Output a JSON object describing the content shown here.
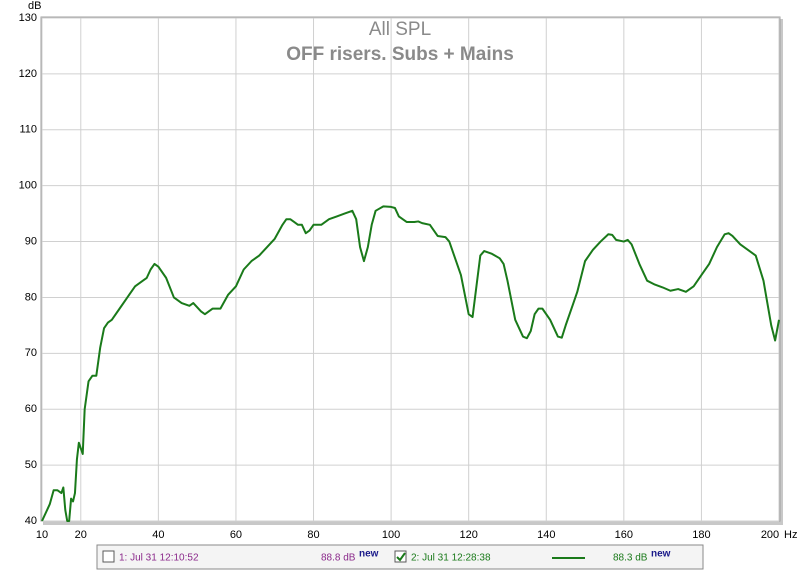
{
  "chart_data": {
    "type": "line",
    "title": "All SPL",
    "subtitle": "OFF risers. Subs + Mains",
    "y_unit": "dB",
    "x_unit": "Hz",
    "xlim": [
      10,
      200
    ],
    "ylim": [
      40,
      130
    ],
    "xticks": [
      10,
      20,
      40,
      60,
      80,
      100,
      120,
      140,
      160,
      180,
      200
    ],
    "yticks": [
      40,
      50,
      60,
      70,
      80,
      90,
      100,
      110,
      120,
      130
    ],
    "grid": true,
    "series": [
      {
        "name": "2: Jul 31 12:28:38",
        "color": "#1a7a1a",
        "x": [
          10,
          12,
          13,
          14,
          15,
          15.5,
          16,
          16.5,
          17,
          17.5,
          18,
          18.5,
          19,
          19.5,
          20,
          20.5,
          21,
          22,
          23,
          24,
          25,
          26,
          27,
          28,
          30,
          32,
          34,
          36,
          37,
          38,
          39,
          40,
          42,
          44,
          46,
          48,
          49,
          51,
          52,
          54,
          56,
          58,
          60,
          62,
          64,
          66,
          68,
          70,
          72,
          73,
          74,
          75,
          76,
          77,
          78,
          79,
          80,
          82,
          84,
          86,
          88,
          90,
          91,
          92,
          93,
          94,
          95,
          96,
          98,
          100,
          101,
          102,
          104,
          106,
          107,
          108,
          110,
          112,
          114,
          115,
          118,
          120,
          121,
          122,
          123,
          124,
          126,
          128,
          129,
          130,
          132,
          134,
          135,
          136,
          137,
          138,
          139,
          141,
          142,
          143,
          144,
          145,
          147,
          148,
          150,
          152,
          154,
          156,
          157,
          158,
          160,
          161,
          162,
          164,
          166,
          168,
          170,
          172,
          174,
          176,
          178,
          180,
          182,
          184,
          186,
          187,
          188,
          190,
          192,
          194,
          196,
          197,
          198,
          199,
          200
        ],
        "values": [
          40,
          43,
          45.5,
          45.5,
          45,
          46,
          42,
          40,
          40,
          44,
          43.5,
          45,
          51,
          54,
          53,
          52,
          60,
          65,
          66,
          66,
          71,
          74.5,
          75.5,
          76,
          78,
          80,
          82,
          83,
          83.5,
          85,
          86,
          85.5,
          83.5,
          80,
          79,
          78.5,
          79,
          77.5,
          77,
          78,
          78,
          80.5,
          82,
          85,
          86.5,
          87.5,
          89,
          90.5,
          93,
          94,
          94,
          93.5,
          93,
          93,
          91.5,
          92,
          93,
          93,
          94,
          94.5,
          95,
          95.5,
          94,
          89,
          86.5,
          89,
          93,
          95.5,
          96.3,
          96.2,
          96,
          94.5,
          93.5,
          93.5,
          93.6,
          93.3,
          93,
          91,
          90.8,
          90,
          84,
          77,
          76.5,
          82,
          87.5,
          88.3,
          87.8,
          87,
          86,
          83,
          76,
          73,
          72.7,
          74,
          77,
          78,
          78,
          76,
          74.5,
          73,
          72.8,
          75,
          79,
          81,
          86.5,
          88.5,
          90,
          91.3,
          91.2,
          90.3,
          90,
          90.3,
          89.5,
          86,
          83,
          82.3,
          81.8,
          81.2,
          81.5,
          81,
          82,
          84,
          86,
          89,
          91.3,
          91.5,
          91,
          89.5,
          88.5,
          87.5,
          83,
          79,
          75,
          72.3,
          76
        ]
      }
    ],
    "legend": [
      {
        "label": "1: Jul 31 12:10:52",
        "level": "88.8 dB",
        "badge": "new",
        "color": "#8b2a8b",
        "checked": false
      },
      {
        "label": "2: Jul 31 12:28:38",
        "level": "88.3 dB",
        "badge": "new",
        "color": "#1a7a1a",
        "checked": true
      }
    ]
  }
}
